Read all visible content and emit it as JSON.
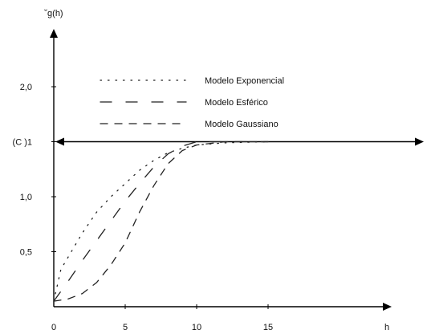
{
  "chart_data": {
    "type": "line",
    "ylabel": "˘g(h)",
    "xlabel": "h",
    "x_ticks": [
      "0",
      "5",
      "10",
      "15"
    ],
    "x_tick_values": [
      0,
      5,
      10,
      15
    ],
    "y_ticks": [
      {
        "label": "0,5",
        "value": 0.5
      },
      {
        "label": "1,0",
        "value": 1.0
      },
      {
        "label": "(C )1",
        "value": 1.5
      },
      {
        "label": "2,0",
        "value": 2.0
      }
    ],
    "xlim": [
      0,
      23
    ],
    "ylim": [
      0,
      2.4
    ],
    "sill_line_value": 1.5,
    "legend_position": "top-center",
    "series": [
      {
        "name": "Modelo Exponencial",
        "style": "dotted",
        "x": [
          0,
          0.5,
          1,
          2,
          3,
          4,
          5,
          6,
          7,
          8,
          9,
          10,
          12,
          15
        ],
        "y": [
          0.05,
          0.34,
          0.45,
          0.67,
          0.86,
          1.0,
          1.12,
          1.24,
          1.33,
          1.4,
          1.44,
          1.47,
          1.49,
          1.5
        ]
      },
      {
        "name": "Modelo Esférico",
        "style": "long-dash",
        "x": [
          0,
          1,
          2,
          3,
          4,
          5,
          6,
          7,
          8,
          9,
          10,
          15
        ],
        "y": [
          0.05,
          0.23,
          0.42,
          0.6,
          0.78,
          0.96,
          1.12,
          1.27,
          1.39,
          1.46,
          1.5,
          1.5
        ]
      },
      {
        "name": "Modelo Gaussiano",
        "style": "dashed",
        "x": [
          0,
          1,
          2,
          3,
          4,
          5,
          6,
          7,
          8,
          9,
          10,
          12,
          15
        ],
        "y": [
          0.05,
          0.07,
          0.12,
          0.22,
          0.38,
          0.58,
          0.86,
          1.1,
          1.3,
          1.42,
          1.47,
          1.5,
          1.5
        ]
      }
    ]
  }
}
